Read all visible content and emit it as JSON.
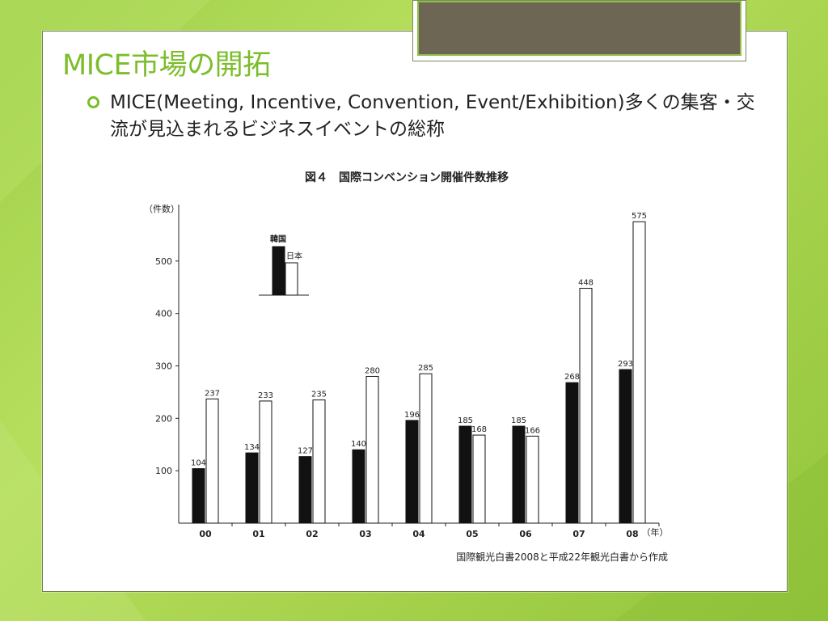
{
  "slide": {
    "title": "MICE市場の開拓",
    "bullet": "MICE(Meeting, Incentive, Convention, Event/Exhibition)多くの集客・交流が見込まれるビジネスイベントの総称"
  },
  "colors": {
    "background": "#a6d24c",
    "accent": "#7cbd2b",
    "korea_bar": "#111111",
    "japan_bar": "#ffffff"
  },
  "chart_data": {
    "type": "bar",
    "title": "図４　国際コンベンション開催件数推移",
    "ylabel": "（件数）",
    "xlabel": "（年）",
    "categories": [
      "00",
      "01",
      "02",
      "03",
      "04",
      "05",
      "06",
      "07",
      "08"
    ],
    "series": [
      {
        "name": "韓国",
        "values": [
          104,
          134,
          127,
          140,
          196,
          185,
          185,
          268,
          293
        ]
      },
      {
        "name": "日本",
        "values": [
          237,
          233,
          235,
          280,
          285,
          168,
          166,
          448,
          575
        ]
      }
    ],
    "yticks": [
      100,
      200,
      300,
      400,
      500
    ],
    "ylim": [
      0,
      600
    ],
    "grid": false,
    "legend_position": "top-left",
    "source": "国際観光白書2008と平成22年観光白書から作成"
  }
}
